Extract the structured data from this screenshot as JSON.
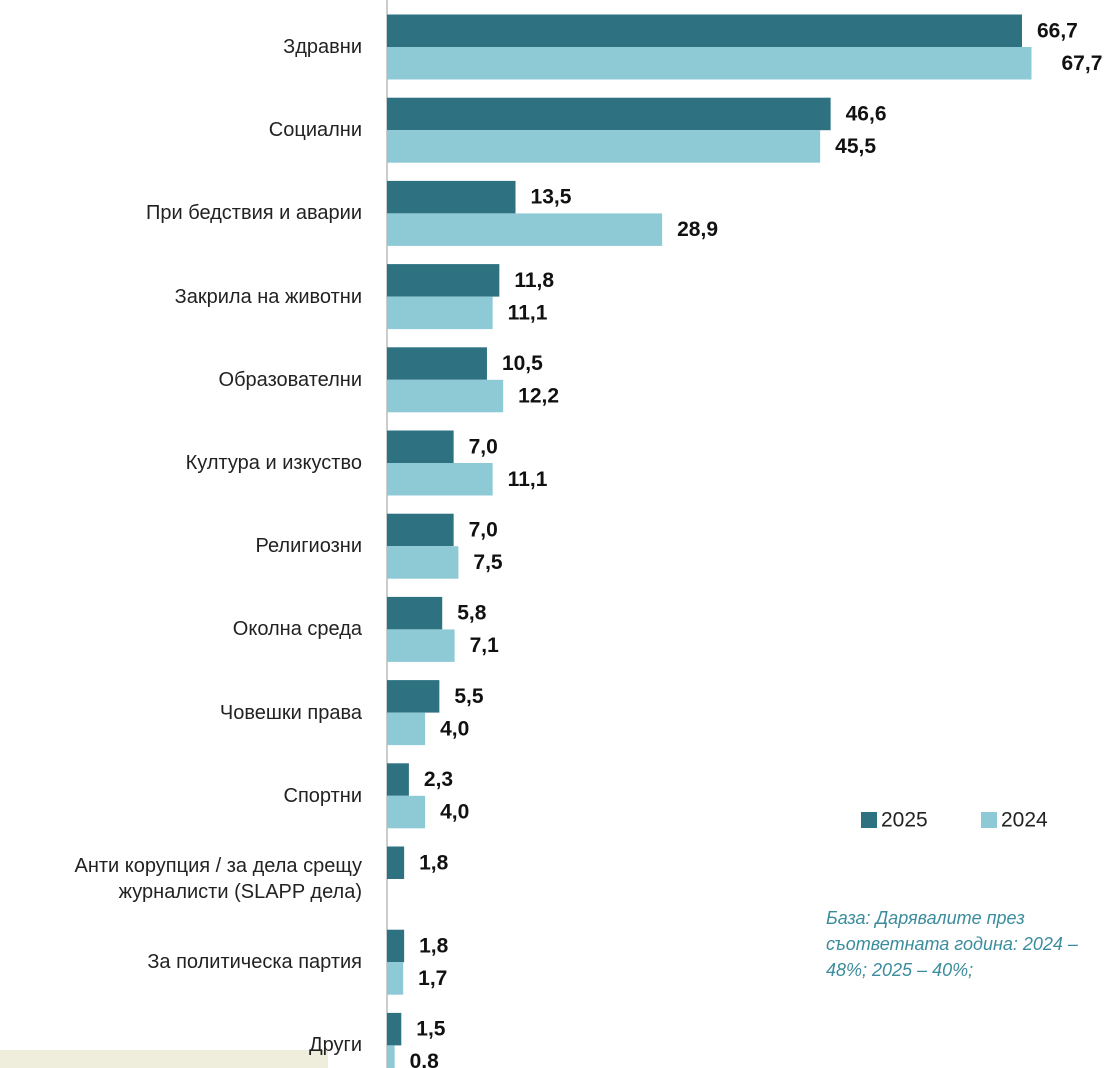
{
  "chart_data": {
    "type": "bar",
    "orientation": "horizontal",
    "categories": [
      "Здравни",
      "Социални",
      "При бедствия и аварии",
      "Закрила на животни",
      "Образователни",
      "Култура и изкуство",
      "Религиозни",
      "Околна среда",
      "Човешки права",
      "Спортни",
      "Анти корупция / за дела срещу журналисти (SLAPP дела)",
      "За политическа партия",
      "Други"
    ],
    "series": [
      {
        "name": "2025",
        "color": "#2e7282",
        "values": [
          66.7,
          46.6,
          13.5,
          11.8,
          10.5,
          7.0,
          7.0,
          5.8,
          5.5,
          2.3,
          1.8,
          1.8,
          1.5
        ],
        "value_labels": [
          "66,7",
          "46,6",
          "13,5",
          "11,8",
          "10,5",
          "7,0",
          "7,0",
          "5,8",
          "5,5",
          "2,3",
          "1,8",
          "1,8",
          "1,5"
        ]
      },
      {
        "name": "2024",
        "color": "#8ecad6",
        "values": [
          67.7,
          45.5,
          28.9,
          11.1,
          12.2,
          11.1,
          7.5,
          7.1,
          4.0,
          4.0,
          null,
          1.7,
          0.8
        ],
        "value_labels": [
          "67,7",
          "45,5",
          "28,9",
          "11,1",
          "12,2",
          "11,1",
          "7,5",
          "7,1",
          "4,0",
          "4,0",
          null,
          "1,7",
          "0,8"
        ]
      }
    ],
    "xlim": [
      0,
      70
    ],
    "annotation": "База: Дарявалите през съответната година: 2024 – 48%; 2025 – 40%;"
  }
}
